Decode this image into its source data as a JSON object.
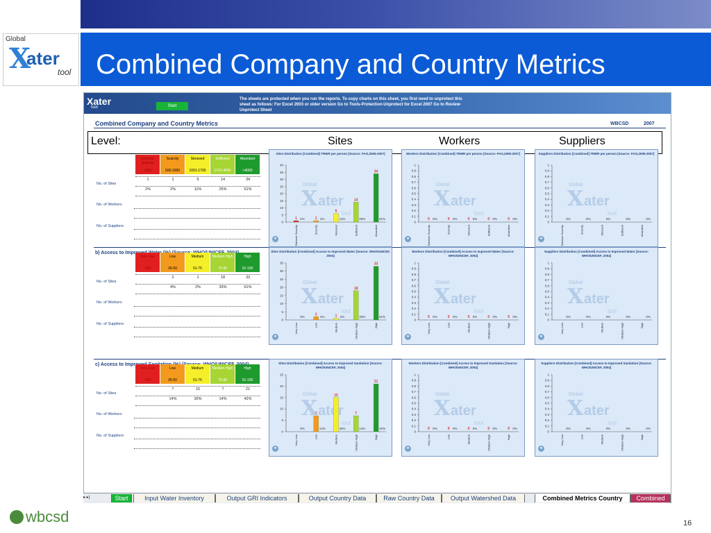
{
  "slide": {
    "title": "Combined Company and Country Metrics",
    "page_number": "16",
    "logo_text": {
      "global": "Global",
      "x": "X",
      "ater": "ater",
      "tool": "tool"
    },
    "footer_logo": "wbcsd"
  },
  "sheet": {
    "header_logo": "Xater",
    "header_logo_sub": "tool",
    "start_button": "Start",
    "notice": "The sheets are protected when you run the reports. To copy charts on this sheet, you first need to unprotect this sheet as follows: For Excel 2003 or older version Go to Tools-Protection-Unprotect for Excel 2007 Go to Review-Unprotect Sheet",
    "title": "Combined Company and Country Metrics",
    "org": "WBCSD",
    "year": "2007",
    "level": {
      "label": "Level:",
      "sites": "Sites",
      "workers": "Workers",
      "suppliers": "Suppliers"
    },
    "row_labels": [
      "No. of Sites",
      "No. of Workers",
      "No. of Suppliers"
    ]
  },
  "sections": [
    {
      "title": "",
      "categories": [
        {
          "label": "Extreme Scarcity",
          "range": "<500",
          "color": "#e02020",
          "text": "#a00000"
        },
        {
          "label": "Scarcity",
          "range": "500-1000",
          "color": "#f39a1e",
          "text": "#000"
        },
        {
          "label": "Stressed",
          "range": "1001-1700",
          "color": "#f5ee2a",
          "text": "#000"
        },
        {
          "label": "Sufficient",
          "range": "1701-4000",
          "color": "#a6d534",
          "text": "#fff"
        },
        {
          "label": "Abundant",
          "range": ">4000",
          "color": "#1f9b2e",
          "text": "#fff"
        }
      ],
      "sites_counts": [
        "1",
        "1",
        "6",
        "14",
        "34"
      ],
      "sites_pcts": [
        "2%",
        "2%",
        "11%",
        "25%",
        "61%"
      ],
      "charts": [
        {
          "title": "Sites Distribution [Combined] TRWR per person [Source: FAO,2005-2007]",
          "ymax": 40,
          "ticks": [
            "0",
            "5",
            "10",
            "15",
            "20",
            "25",
            "30",
            "35",
            "40"
          ],
          "values": [
            1,
            1,
            6,
            14,
            34
          ],
          "value_labels": [
            "1",
            "1",
            "6",
            "14",
            "34"
          ],
          "pct_labels": [
            "2%",
            "2%",
            "11%",
            "25%",
            "61%"
          ],
          "show_values": true,
          "x_labels": [
            "Extreme Scarcity",
            "Scarcity",
            "Stressed",
            "Sufficient",
            "Abundant"
          ]
        },
        {
          "title": "Workers Distribution [Combined] TRWR per person [Source: FAO,2005-2007]",
          "ymax": 1,
          "ticks": [
            "0",
            "0.1",
            "0.2",
            "0.3",
            "0.4",
            "0.5",
            "0.6",
            "0.7",
            "0.8",
            "0.9",
            "1"
          ],
          "values": [
            0,
            0,
            0,
            0,
            0
          ],
          "value_labels": [
            "0",
            "0",
            "0",
            "0",
            "0"
          ],
          "pct_labels": [
            "0%",
            "0%",
            "0%",
            "0%",
            "0%"
          ],
          "show_values": true,
          "x_labels": [
            "Extreme Scarcity",
            "Scarcity",
            "Stressed",
            "Sufficient",
            "Abundant"
          ]
        },
        {
          "title": "Suppliers Distribution [Combined] TRWR per person [Source: FAO,2005-2007]",
          "ymax": 1,
          "ticks": [
            "0",
            "0.1",
            "0.2",
            "0.3",
            "0.4",
            "0.5",
            "0.6",
            "0.7",
            "0.8",
            "0.9",
            "1"
          ],
          "values": [
            0,
            0,
            0,
            0,
            0
          ],
          "value_labels": [
            "",
            "",
            "",
            "",
            ""
          ],
          "pct_labels": [
            "0%",
            "0%",
            "0%",
            "0%",
            "0%"
          ],
          "show_values": false,
          "x_labels": [
            "Extreme Scarcity",
            "Scarcity",
            "Stressed",
            "Sufficient",
            "Abundant"
          ]
        }
      ]
    },
    {
      "title": "b) Access to Improved Water (%) (Source: WHO/UNICEF, 2004)",
      "categories": [
        {
          "label": "Very Low",
          "range": "<25",
          "color": "#e02020",
          "text": "#a00000"
        },
        {
          "label": "Low",
          "range": "26-50",
          "color": "#f39a1e",
          "text": "#000"
        },
        {
          "label": "Medium",
          "range": "51-75",
          "color": "#f5ee2a",
          "text": "#000"
        },
        {
          "label": "Medium High",
          "range": "76-90",
          "color": "#a6d534",
          "text": "#fff"
        },
        {
          "label": "High",
          "range": "91-100",
          "color": "#1f9b2e",
          "text": "#fff"
        }
      ],
      "sites_counts": [
        "",
        "2",
        "1",
        "18",
        "33"
      ],
      "sites_pcts": [
        "",
        "4%",
        "2%",
        "33%",
        "61%"
      ],
      "charts": [
        {
          "title": "Sites Distribution [Combined] Access to Improved Water [Source: WHO/UNICEF, 2004]",
          "ymax": 35,
          "ticks": [
            "0",
            "5",
            "10",
            "15",
            "20",
            "25",
            "30",
            "35"
          ],
          "values": [
            0,
            2,
            1,
            18,
            33
          ],
          "value_labels": [
            "",
            "2",
            "1",
            "18",
            "33"
          ],
          "pct_labels": [
            "0%",
            "4%",
            "2%",
            "33%",
            "61%"
          ],
          "show_values": true,
          "x_labels": [
            "Very Low",
            "Low",
            "Medium",
            "Medium High",
            "High"
          ]
        },
        {
          "title": "Workers Distribution [Combined] Access to Improved Water [Source: WHO/UNICEF, 2004]",
          "ymax": 1,
          "ticks": [
            "0",
            "0.1",
            "0.2",
            "0.3",
            "0.4",
            "0.5",
            "0.6",
            "0.7",
            "0.8",
            "0.9",
            "1"
          ],
          "values": [
            0,
            0,
            0,
            0,
            0
          ],
          "value_labels": [
            "0",
            "0",
            "0",
            "0",
            "0"
          ],
          "pct_labels": [
            "0%",
            "0%",
            "0%",
            "0%",
            "0%"
          ],
          "show_values": true,
          "x_labels": [
            "Very Low",
            "Low",
            "Medium",
            "Medium High",
            "High"
          ]
        },
        {
          "title": "Suppliers Distribution [Combined] Access to Improved Water [Source: WHO/UNICEF, 2004]",
          "ymax": 1,
          "ticks": [
            "0",
            "0.1",
            "0.2",
            "0.3",
            "0.4",
            "0.5",
            "0.6",
            "0.7",
            "0.8",
            "0.9",
            "1"
          ],
          "values": [
            0,
            0,
            0,
            0,
            0
          ],
          "value_labels": [
            "",
            "",
            "",
            "",
            ""
          ],
          "pct_labels": [
            "0%",
            "0%",
            "0%",
            "0%",
            "0%"
          ],
          "show_values": false,
          "x_labels": [
            "Very Low",
            "Low",
            "Medium",
            "Medium High",
            "High"
          ]
        }
      ]
    },
    {
      "title": "c) Access to Improved Sanitation (%) (Source: WHO/UNICEF, 2004)",
      "categories": [
        {
          "label": "Very Low",
          "range": "<25",
          "color": "#e02020",
          "text": "#a00000"
        },
        {
          "label": "Low",
          "range": "26-50",
          "color": "#f39a1e",
          "text": "#000"
        },
        {
          "label": "Medium",
          "range": "51-75",
          "color": "#f5ee2a",
          "text": "#000"
        },
        {
          "label": "Medium High",
          "range": "76-90",
          "color": "#a6d534",
          "text": "#fff"
        },
        {
          "label": "High",
          "range": "91-100",
          "color": "#1f9b2e",
          "text": "#fff"
        }
      ],
      "sites_counts": [
        "",
        "7",
        "15",
        "7",
        "21"
      ],
      "sites_pcts": [
        "",
        "14%",
        "30%",
        "14%",
        "42%"
      ],
      "charts": [
        {
          "title": "Sites Distribution [Combined] Access to Improved Sanitation [Source: WHO/UNICEF, 2004]",
          "ymax": 25,
          "ticks": [
            "0",
            "5",
            "10",
            "15",
            "20",
            "25"
          ],
          "values": [
            0,
            7,
            15,
            7,
            21
          ],
          "value_labels": [
            "",
            "7",
            "15",
            "7",
            "21"
          ],
          "pct_labels": [
            "0%",
            "14%",
            "30%",
            "14%",
            "42%"
          ],
          "show_values": true,
          "x_labels": [
            "Very Low",
            "Low",
            "Medium",
            "Medium High",
            "High"
          ]
        },
        {
          "title": "Workers Distribution [Combined] Access to Improved Sanitation [Source: WHO/UNICEF, 2004]",
          "ymax": 1,
          "ticks": [
            "0",
            "0.1",
            "0.2",
            "0.3",
            "0.4",
            "0.5",
            "0.6",
            "0.7",
            "0.8",
            "0.9",
            "1"
          ],
          "values": [
            0,
            0,
            0,
            0,
            0
          ],
          "value_labels": [
            "0",
            "0",
            "0",
            "0",
            "0"
          ],
          "pct_labels": [
            "0%",
            "0%",
            "0%",
            "0%",
            "0%"
          ],
          "show_values": true,
          "x_labels": [
            "Very Low",
            "Low",
            "Medium",
            "Medium High",
            "High"
          ]
        },
        {
          "title": "Suppliers Distribution [Combined] Access to Improved Sanitation [Source: WHO/UNICEF, 2004]",
          "ymax": 1,
          "ticks": [
            "0",
            "0.1",
            "0.2",
            "0.3",
            "0.4",
            "0.5",
            "0.6",
            "0.7",
            "0.8",
            "0.9",
            "1"
          ],
          "values": [
            0,
            0,
            0,
            0,
            0
          ],
          "value_labels": [
            "",
            "",
            "",
            "",
            ""
          ],
          "pct_labels": [
            "0%",
            "0%",
            "0%",
            "0%",
            "0%"
          ],
          "show_values": false,
          "x_labels": [
            "Very Low",
            "Low",
            "Medium",
            "Medium High",
            "High"
          ]
        }
      ]
    }
  ],
  "chart_watermark": {
    "global": "Global",
    "x": "X",
    "ater": "ater",
    "tool": "tool"
  },
  "tabs": {
    "nav": "▸ ▸|",
    "items": [
      {
        "label": "Start",
        "style": "green"
      },
      {
        "label": "Input Water Inventory",
        "style": "normal"
      },
      {
        "label": "Output GRI Indicators",
        "style": "normal"
      },
      {
        "label": "Output Country Data",
        "style": "normal"
      },
      {
        "label": "Raw Country Data",
        "style": "normal"
      },
      {
        "label": "Output Watershed Data",
        "style": "normal"
      },
      {
        "label": "Combined Metrics Country",
        "style": "active"
      },
      {
        "label": "Combined",
        "style": "pink"
      }
    ]
  },
  "chart_data": [
    {
      "type": "bar",
      "title": "Sites Distribution [Combined] TRWR per person [Source: FAO,2005-2007]",
      "categories": [
        "Extreme Scarcity",
        "Scarcity",
        "Stressed",
        "Sufficient",
        "Abundant"
      ],
      "values": [
        1,
        1,
        6,
        14,
        34
      ],
      "ylim": [
        0,
        40
      ]
    },
    {
      "type": "bar",
      "title": "Workers Distribution [Combined] TRWR per person [Source: FAO,2005-2007]",
      "categories": [
        "Extreme Scarcity",
        "Scarcity",
        "Stressed",
        "Sufficient",
        "Abundant"
      ],
      "values": [
        0,
        0,
        0,
        0,
        0
      ],
      "ylim": [
        0,
        1
      ]
    },
    {
      "type": "bar",
      "title": "Suppliers Distribution [Combined] TRWR per person [Source: FAO,2005-2007]",
      "categories": [
        "Extreme Scarcity",
        "Scarcity",
        "Stressed",
        "Sufficient",
        "Abundant"
      ],
      "values": [
        0,
        0,
        0,
        0,
        0
      ],
      "ylim": [
        0,
        1
      ]
    },
    {
      "type": "bar",
      "title": "Sites Distribution [Combined] Access to Improved Water [Source: WHO/UNICEF, 2004]",
      "categories": [
        "Very Low",
        "Low",
        "Medium",
        "Medium High",
        "High"
      ],
      "values": [
        0,
        2,
        1,
        18,
        33
      ],
      "ylim": [
        0,
        35
      ]
    },
    {
      "type": "bar",
      "title": "Workers Distribution [Combined] Access to Improved Water [Source: WHO/UNICEF, 2004]",
      "categories": [
        "Very Low",
        "Low",
        "Medium",
        "Medium High",
        "High"
      ],
      "values": [
        0,
        0,
        0,
        0,
        0
      ],
      "ylim": [
        0,
        1
      ]
    },
    {
      "type": "bar",
      "title": "Suppliers Distribution [Combined] Access to Improved Water [Source: WHO/UNICEF, 2004]",
      "categories": [
        "Very Low",
        "Low",
        "Medium",
        "Medium High",
        "High"
      ],
      "values": [
        0,
        0,
        0,
        0,
        0
      ],
      "ylim": [
        0,
        1
      ]
    },
    {
      "type": "bar",
      "title": "Sites Distribution [Combined] Access to Improved Sanitation [Source: WHO/UNICEF, 2004]",
      "categories": [
        "Very Low",
        "Low",
        "Medium",
        "Medium High",
        "High"
      ],
      "values": [
        0,
        7,
        15,
        7,
        21
      ],
      "ylim": [
        0,
        25
      ]
    },
    {
      "type": "bar",
      "title": "Workers Distribution [Combined] Access to Improved Sanitation [Source: WHO/UNICEF, 2004]",
      "categories": [
        "Very Low",
        "Low",
        "Medium",
        "Medium High",
        "High"
      ],
      "values": [
        0,
        0,
        0,
        0,
        0
      ],
      "ylim": [
        0,
        1
      ]
    },
    {
      "type": "bar",
      "title": "Suppliers Distribution [Combined] Access to Improved Sanitation [Source: WHO/UNICEF, 2004]",
      "categories": [
        "Very Low",
        "Low",
        "Medium",
        "Medium High",
        "High"
      ],
      "values": [
        0,
        0,
        0,
        0,
        0
      ],
      "ylim": [
        0,
        1
      ]
    }
  ]
}
